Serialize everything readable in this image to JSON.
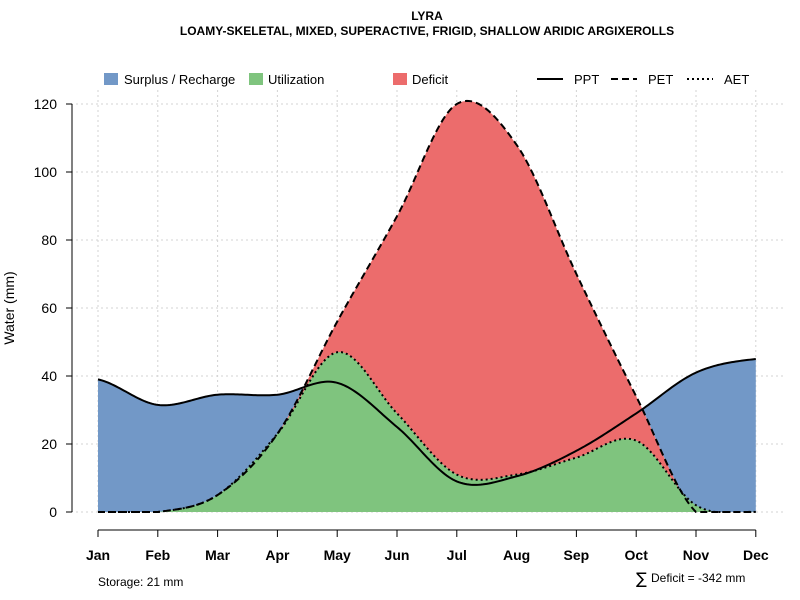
{
  "chart_data": {
    "type": "area",
    "title": "LYRA",
    "subtitle": "LOAMY-SKELETAL, MIXED, SUPERACTIVE, FRIGID, SHALLOW ARIDIC ARGIXEROLLS",
    "ylabel": "Water (mm)",
    "xlabel": "",
    "ylim": [
      0,
      120
    ],
    "yticks": [
      0,
      20,
      40,
      60,
      80,
      100,
      120
    ],
    "grid": true,
    "categories": [
      "Jan",
      "Feb",
      "Mar",
      "Apr",
      "May",
      "Jun",
      "Jul",
      "Aug",
      "Sep",
      "Oct",
      "Nov",
      "Dec"
    ],
    "series": [
      {
        "name": "PPT",
        "style": "solid",
        "values": [
          39,
          31.5,
          34.5,
          34.5,
          38,
          25,
          9,
          10.5,
          18,
          29,
          41,
          45
        ]
      },
      {
        "name": "PET",
        "style": "dashed",
        "values": [
          0,
          0,
          5,
          23,
          56,
          87,
          120,
          108,
          70,
          34,
          0,
          0
        ]
      },
      {
        "name": "AET",
        "style": "dotted",
        "values": [
          0,
          0,
          5,
          23,
          47,
          29,
          11,
          11,
          16,
          21,
          2,
          0
        ]
      }
    ],
    "areas": [
      {
        "name": "Surplus / Recharge",
        "color": "#7298c7"
      },
      {
        "name": "Utilization",
        "color": "#7fc47e"
      },
      {
        "name": "Deficit",
        "color": "#ec6c6c"
      }
    ],
    "legend": [
      "Surplus / Recharge",
      "Utilization",
      "Deficit",
      "PPT",
      "PET",
      "AET"
    ],
    "legend_position": "top"
  },
  "annotations": {
    "storage": "Storage: 21 mm",
    "deficit_symbol": "∑",
    "deficit": "Deficit = -342 mm"
  }
}
